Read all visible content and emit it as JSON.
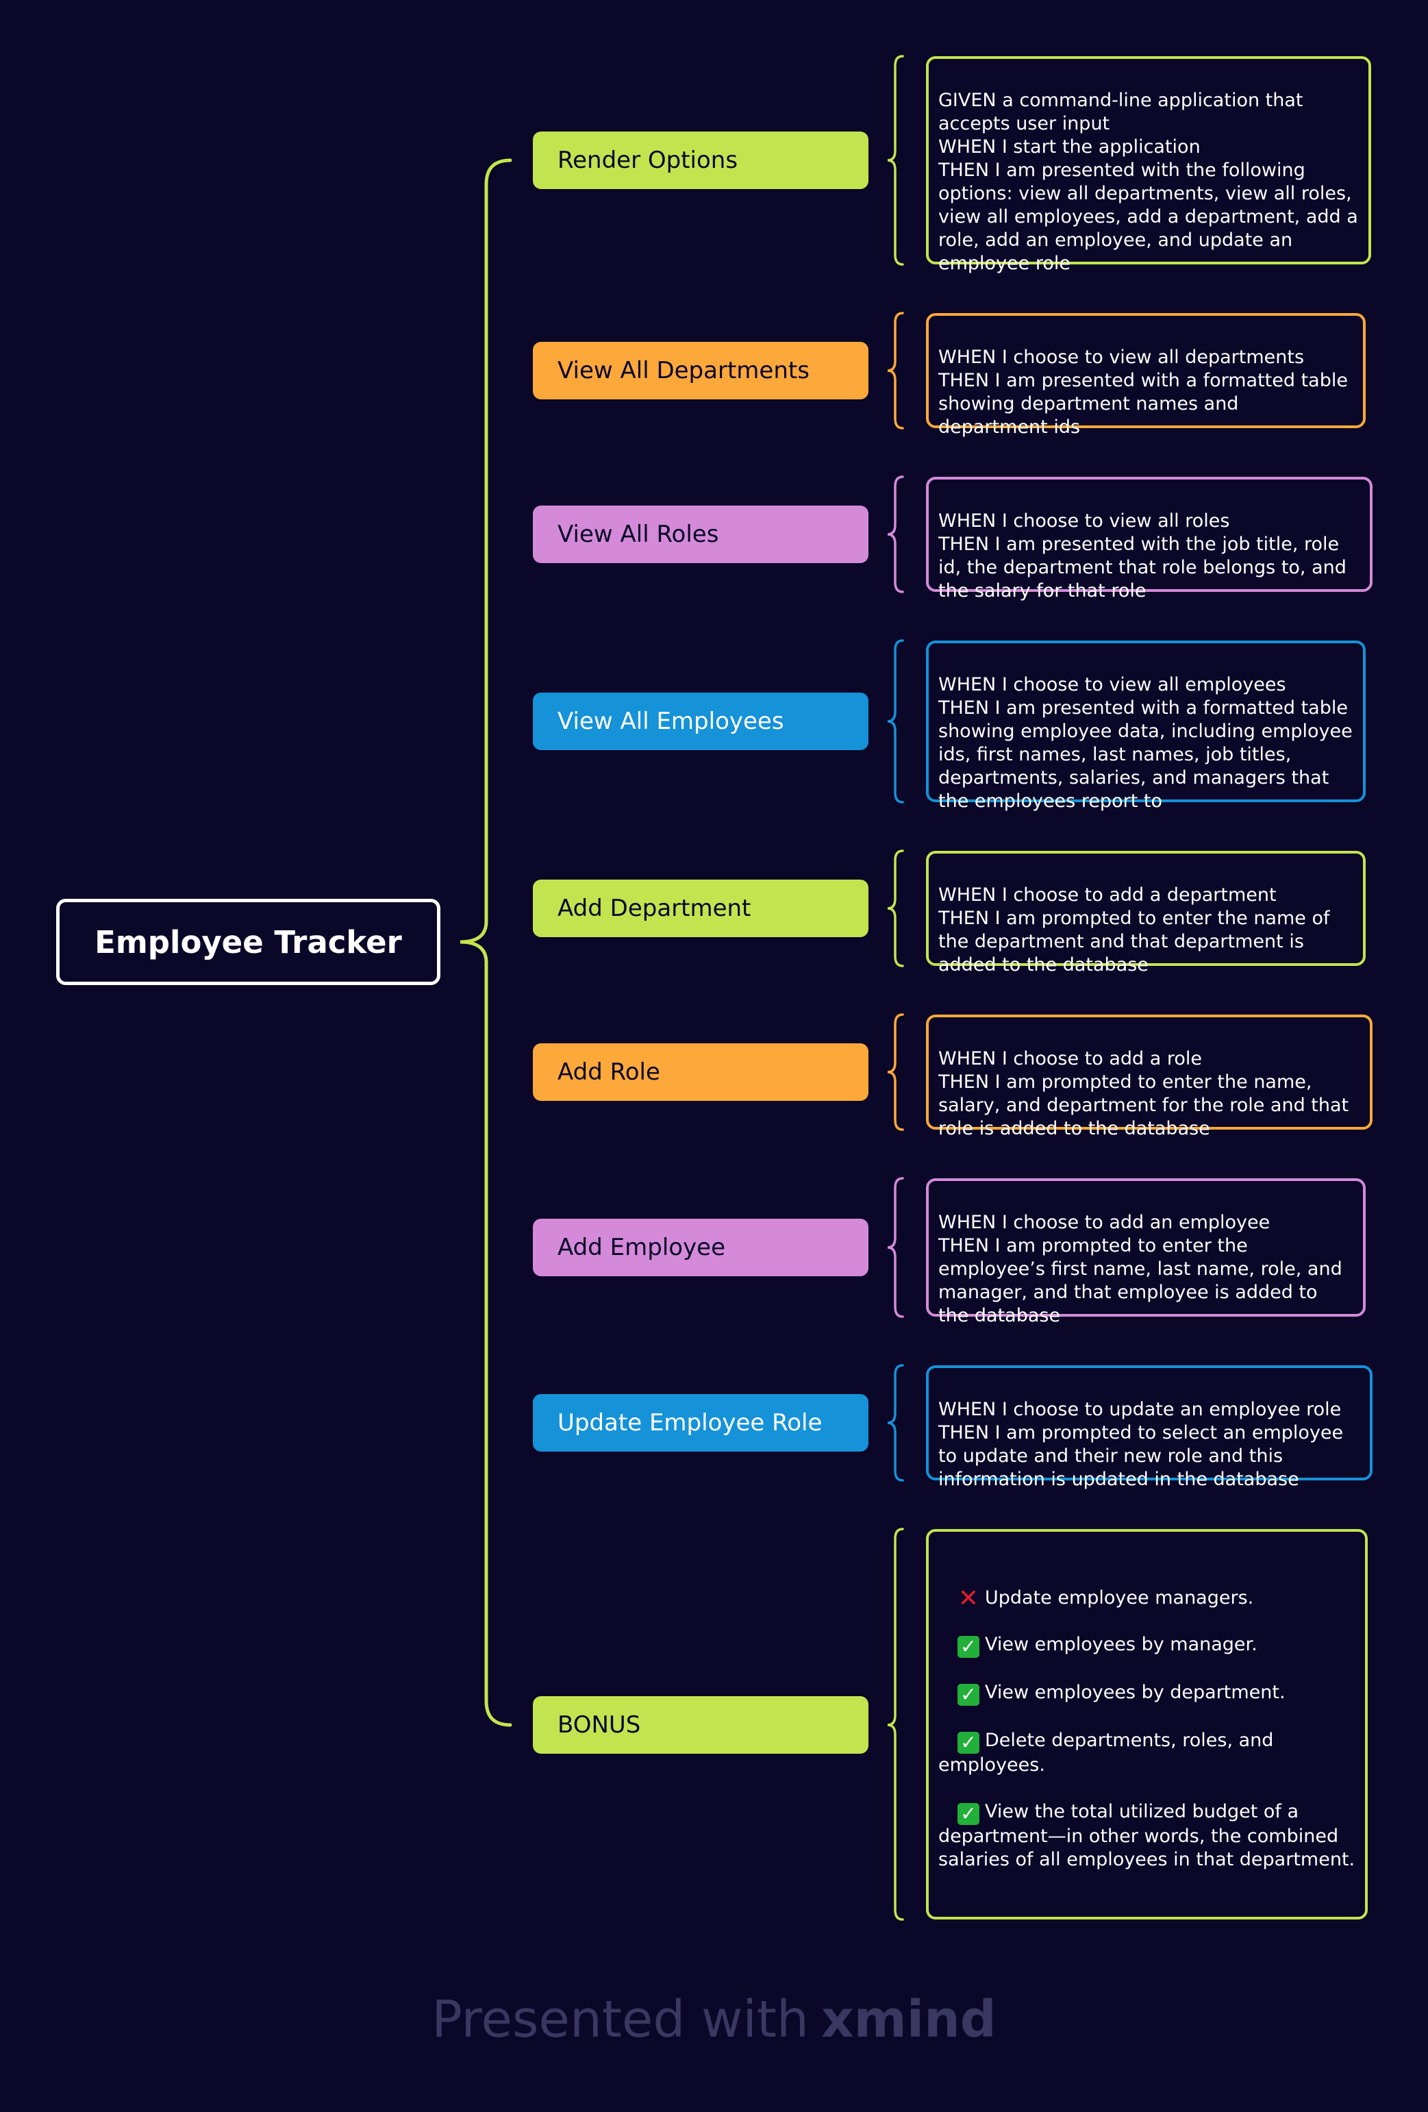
{
  "root": {
    "label": "Employee Tracker",
    "color": "#ffffff"
  },
  "topics": [
    {
      "label": "Render Options",
      "color": "#c3e44f",
      "text_color": "#0a0728",
      "detail": "GIVEN a command-line application that accepts user input\nWHEN I start the application\nTHEN I am presented with the following options: view all departments, view all roles, view all employees, add a department, add a role, add an employee, and update an employee role"
    },
    {
      "label": "View All Departments",
      "color": "#fda83a",
      "text_color": "#0a0728",
      "detail": "WHEN I choose to view all departments\nTHEN I am presented with a formatted table showing department names and department ids"
    },
    {
      "label": "View All Roles",
      "color": "#d48ad8",
      "text_color": "#0a0728",
      "detail": "WHEN I choose to view all roles\nTHEN I am presented with the job title, role id, the department that role belongs to, and the salary for that role"
    },
    {
      "label": "View All Employees",
      "color": "#1592d8",
      "text_color": "#ffffff",
      "detail": "WHEN I choose to view all employees\nTHEN I am presented with a formatted table showing employee data, including employee ids, first names, last names, job titles, departments, salaries, and managers that the employees report to"
    },
    {
      "label": "Add Department",
      "color": "#c3e44f",
      "text_color": "#0a0728",
      "detail": "WHEN I choose to add a department\nTHEN I am prompted to enter the name of the department and that department is added to the database"
    },
    {
      "label": "Add Role",
      "color": "#fda83a",
      "text_color": "#0a0728",
      "detail": "WHEN I choose to add a role\nTHEN I am prompted to enter the name, salary, and department for the role and that role is added to the database"
    },
    {
      "label": "Add Employee",
      "color": "#d48ad8",
      "text_color": "#0a0728",
      "detail": "WHEN I choose to add an employee\nTHEN I am prompted to enter the employee’s first name, last name, role, and manager, and that employee is added to the database"
    },
    {
      "label": "Update Employee Role",
      "color": "#1592d8",
      "text_color": "#ffffff",
      "detail": "WHEN I choose to update an employee role\nTHEN I am prompted to select an employee to update and their new role and this information is updated in the database"
    },
    {
      "label": "BONUS",
      "color": "#c3e44f",
      "text_color": "#0a0728",
      "bonus_items": [
        {
          "status": "cross",
          "icon": "red-cross-icon",
          "text": "Update employee managers."
        },
        {
          "status": "check",
          "icon": "green-checkmark-icon",
          "text": "View employees by manager."
        },
        {
          "status": "check",
          "icon": "green-checkmark-icon",
          "text": "View employees by department."
        },
        {
          "status": "check",
          "icon": "green-checkmark-icon",
          "text": "Delete departments, roles, and employees."
        },
        {
          "status": "check",
          "icon": "green-checkmark-icon",
          "text": "View the total utilized budget of a department—in other words, the combined salaries of all employees in that department."
        }
      ]
    }
  ],
  "footer": {
    "prefix": "Presented with",
    "brand": "xmind"
  }
}
